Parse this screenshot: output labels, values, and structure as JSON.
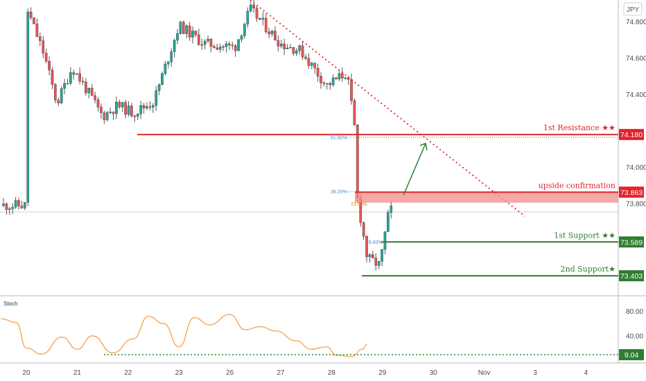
{
  "currency_badge": "JPY",
  "stoch_label": "Stoch",
  "colors": {
    "up": "#26a69a",
    "down": "#ef5350",
    "wick": "#555555",
    "resistance": "#e0232a",
    "support": "#2e7d32",
    "trendline": "#e0232a",
    "stoch_line": "#f5a04a",
    "zone_fill": "#f28b8b",
    "fib": "#4a90d9"
  },
  "chart_data": [
    {
      "type": "candlestick",
      "title": "",
      "x_ticks": [
        "20",
        "21",
        "22",
        "23",
        "26",
        "27",
        "28",
        "29",
        "30",
        "Nov",
        "3",
        "4"
      ],
      "y_ticks": [
        "74.800",
        "74.600",
        "74.400",
        "74.000",
        "73.800"
      ],
      "ylim": [
        73.35,
        74.92
      ],
      "grid": false,
      "price_path": [
        {
          "x": 0.0,
          "y": 74.88
        },
        {
          "x": 0.35,
          "y": 74.62
        },
        {
          "x": 0.6,
          "y": 74.35
        },
        {
          "x": 0.9,
          "y": 74.55
        },
        {
          "x": 1.2,
          "y": 74.42
        },
        {
          "x": 1.5,
          "y": 74.28
        },
        {
          "x": 1.8,
          "y": 74.34
        },
        {
          "x": 2.1,
          "y": 74.3
        },
        {
          "x": 2.5,
          "y": 74.36
        },
        {
          "x": 3.0,
          "y": 74.78
        },
        {
          "x": 3.5,
          "y": 74.68
        },
        {
          "x": 4.1,
          "y": 74.66
        },
        {
          "x": 4.4,
          "y": 74.87
        },
        {
          "x": 5.0,
          "y": 74.68
        },
        {
          "x": 5.4,
          "y": 74.64
        },
        {
          "x": 5.9,
          "y": 74.45
        },
        {
          "x": 6.3,
          "y": 74.52
        },
        {
          "x": 6.45,
          "y": 74.22
        },
        {
          "x": 6.5,
          "y": 73.84
        },
        {
          "x": 6.7,
          "y": 73.5
        },
        {
          "x": 6.95,
          "y": 73.46
        },
        {
          "x": 7.1,
          "y": 73.72
        },
        {
          "x": 7.2,
          "y": 73.79
        }
      ],
      "levels": [
        {
          "name": "1st Resistance ★★",
          "price": "74.180",
          "value": 74.18,
          "kind": "resistance"
        },
        {
          "name": "upside confirmation",
          "price": "73.863",
          "value": 73.863,
          "kind": "resistance"
        },
        {
          "name": "1st Support ★★",
          "price": "73.589",
          "value": 73.589,
          "kind": "support"
        },
        {
          "name": "2nd Support★",
          "price": "73.403",
          "value": 73.403,
          "kind": "support"
        }
      ],
      "fib_labels": [
        "61.80%",
        "38.20%",
        "23.60%",
        "78.60%"
      ],
      "trendline": {
        "from": {
          "x": 4.4,
          "y": 74.92
        },
        "to": {
          "x": 9.8,
          "y": 73.73
        }
      },
      "arrow": {
        "from": {
          "x": 7.4,
          "y": 73.88
        },
        "to": {
          "x": 7.75,
          "y": 74.16
        }
      }
    },
    {
      "type": "line",
      "title": "Stoch",
      "y_ticks": [
        "80.00",
        "40.00"
      ],
      "ylim": [
        0,
        100
      ],
      "oversold_level": {
        "label": "9.04",
        "value": 9.04
      },
      "series": [
        {
          "values": [
            {
              "x": 0.0,
              "y": 68
            },
            {
              "x": 0.3,
              "y": 62
            },
            {
              "x": 0.5,
              "y": 20
            },
            {
              "x": 0.8,
              "y": 10
            },
            {
              "x": 1.2,
              "y": 38
            },
            {
              "x": 1.5,
              "y": 18
            },
            {
              "x": 1.8,
              "y": 40
            },
            {
              "x": 2.2,
              "y": 12
            },
            {
              "x": 2.6,
              "y": 35
            },
            {
              "x": 2.9,
              "y": 72
            },
            {
              "x": 3.2,
              "y": 60
            },
            {
              "x": 3.5,
              "y": 22
            },
            {
              "x": 3.8,
              "y": 70
            },
            {
              "x": 4.1,
              "y": 58
            },
            {
              "x": 4.5,
              "y": 75
            },
            {
              "x": 4.8,
              "y": 50
            },
            {
              "x": 5.1,
              "y": 55
            },
            {
              "x": 5.4,
              "y": 48
            },
            {
              "x": 5.8,
              "y": 32
            },
            {
              "x": 6.1,
              "y": 18
            },
            {
              "x": 6.4,
              "y": 22
            },
            {
              "x": 6.6,
              "y": 8
            },
            {
              "x": 6.9,
              "y": 6
            },
            {
              "x": 7.1,
              "y": 18
            },
            {
              "x": 7.2,
              "y": 26
            }
          ]
        }
      ]
    }
  ]
}
